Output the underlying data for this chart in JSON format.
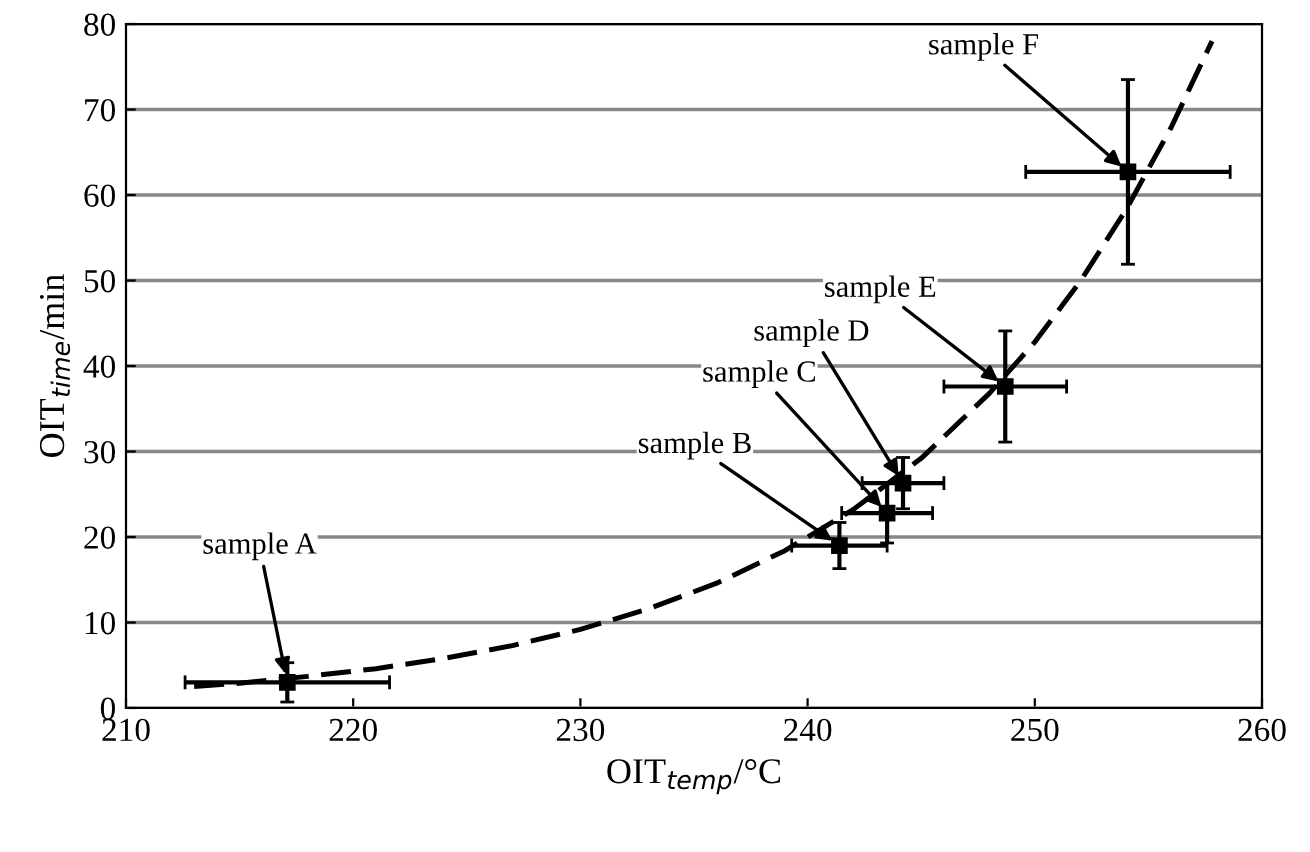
{
  "chart_data": {
    "type": "scatter",
    "xlabel": "OIT$_{temp}$/°C",
    "ylabel": "OIT$_{time}$/min",
    "xlim": [
      210,
      260
    ],
    "xticks": [
      210,
      220,
      230,
      240,
      250,
      260
    ],
    "ylim": [
      0,
      80
    ],
    "yticks": [
      0,
      10,
      20,
      30,
      40,
      50,
      60,
      70,
      80
    ],
    "grid": "y",
    "legend": false,
    "series": [
      {
        "type": "scatter",
        "color": "#000000",
        "marker": "square",
        "x": [
          217.1,
          241.4,
          243.5,
          244.2,
          248.7,
          254.1
        ],
        "values": [
          3.0,
          19.0,
          22.8,
          26.3,
          37.6,
          62.7
        ],
        "errors": [
          2.3,
          2.7,
          3.5,
          3.0,
          6.5,
          10.8
        ],
        "xerrors": [
          4.5,
          2.1,
          2.0,
          1.8,
          2.7,
          4.5
        ]
      },
      {
        "type": "line",
        "color": "#000000",
        "marker": "none",
        "line_style": "dashed",
        "x": [
          213,
          215,
          218,
          221,
          224,
          227,
          230,
          233,
          236,
          239,
          242,
          245,
          248,
          250,
          252,
          254,
          256,
          257.8
        ],
        "values": [
          2.5,
          2.9,
          3.7,
          4.6,
          5.8,
          7.3,
          9.2,
          11.6,
          14.6,
          18.4,
          23.2,
          29.2,
          36.8,
          42.8,
          49.9,
          58.2,
          67.9,
          78
        ]
      }
    ],
    "annotations": [
      {
        "text": "sample A",
        "x": 217.1,
        "y": 3.0
      },
      {
        "text": "sample B",
        "x": 241.4,
        "y": 19.0
      },
      {
        "text": "sample C",
        "x": 243.5,
        "y": 22.8
      },
      {
        "text": "sample D",
        "x": 244.2,
        "y": 26.3
      },
      {
        "text": "sample E",
        "x": 248.7,
        "y": 37.6
      },
      {
        "text": "sample F",
        "x": 254.1,
        "y": 62.7
      }
    ]
  }
}
